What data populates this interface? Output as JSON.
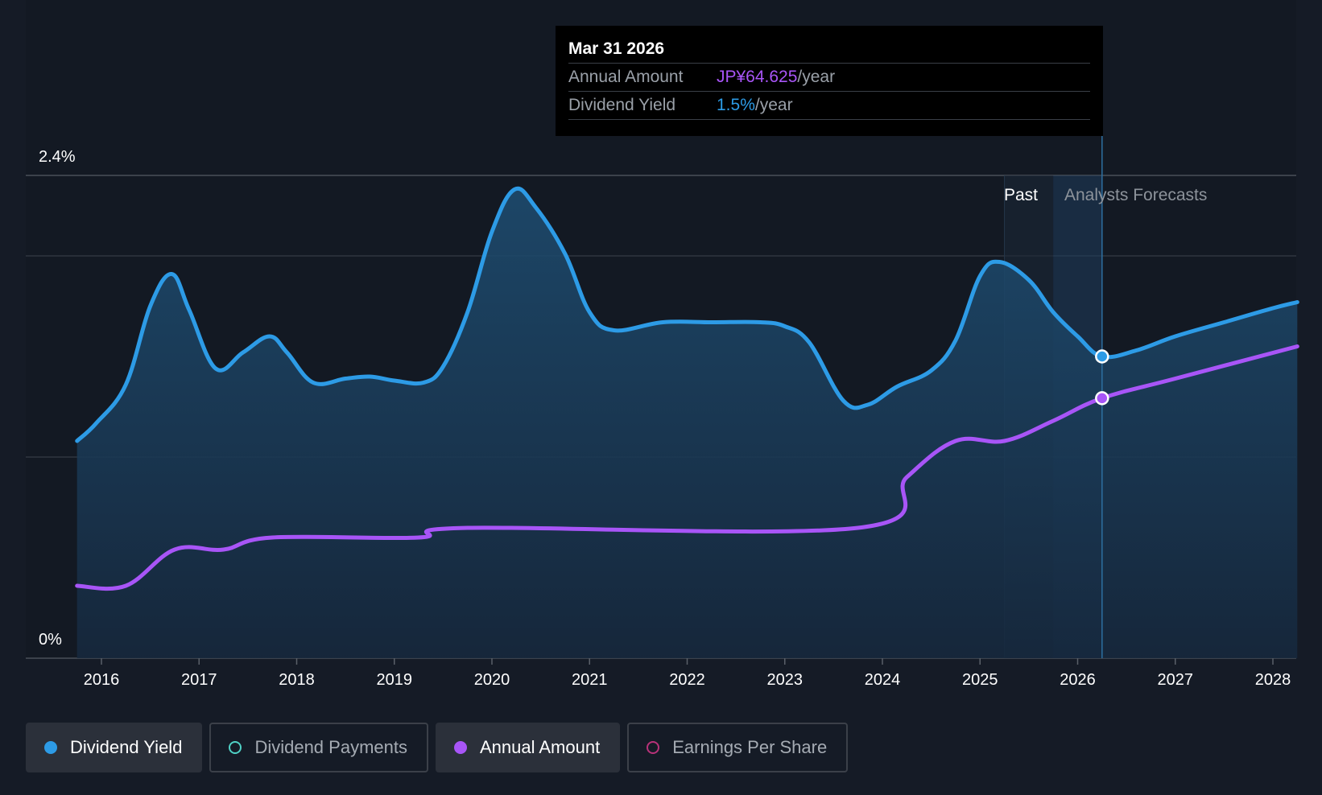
{
  "tooltip": {
    "date": "Mar 31 2026",
    "rows": [
      {
        "label": "Annual Amount",
        "value": "JP¥64.625",
        "unit": "/year"
      },
      {
        "label": "Dividend Yield",
        "value": "1.5%",
        "unit": "/year"
      }
    ]
  },
  "period_labels": {
    "past": "Past",
    "forecast": "Analysts Forecasts"
  },
  "legend": [
    {
      "label": "Dividend Yield",
      "active": true,
      "color": "#2d9be6",
      "style": "filled"
    },
    {
      "label": "Dividend Payments",
      "active": false,
      "color": "#4fd1c5",
      "style": "ring"
    },
    {
      "label": "Annual Amount",
      "active": true,
      "color": "#a855f7",
      "style": "filled"
    },
    {
      "label": "Earnings Per Share",
      "active": false,
      "color": "#b83279",
      "style": "ring"
    }
  ],
  "colors": {
    "background": "#151b26",
    "dividend_yield": "#2d9be6",
    "annual_amount": "#a855f7",
    "grid": "#3a404a"
  },
  "chart_data": {
    "type": "line",
    "title": "",
    "xlabel": "",
    "ylabel": "",
    "x_tick_labels": [
      "2016",
      "2017",
      "2018",
      "2019",
      "2020",
      "2021",
      "2022",
      "2023",
      "2024",
      "2025",
      "2026",
      "2027",
      "2028"
    ],
    "y_tick_labels": [
      "2.4%",
      "0%"
    ],
    "ylim": [
      0,
      2.4
    ],
    "xlim": [
      2015.75,
      2028.25
    ],
    "past_forecast_split": 2026.25,
    "legend_position": "bottom",
    "grid": true,
    "series": [
      {
        "name": "Dividend Yield",
        "unit": "%",
        "axis": "left",
        "filled": true,
        "points": [
          [
            2015.75,
            1.08
          ],
          [
            2015.95,
            1.17
          ],
          [
            2016.25,
            1.36
          ],
          [
            2016.5,
            1.75
          ],
          [
            2016.72,
            1.91
          ],
          [
            2016.9,
            1.73
          ],
          [
            2017.17,
            1.44
          ],
          [
            2017.45,
            1.52
          ],
          [
            2017.72,
            1.6
          ],
          [
            2017.9,
            1.52
          ],
          [
            2018.17,
            1.37
          ],
          [
            2018.5,
            1.39
          ],
          [
            2018.75,
            1.4
          ],
          [
            2019.0,
            1.38
          ],
          [
            2019.3,
            1.37
          ],
          [
            2019.5,
            1.45
          ],
          [
            2019.75,
            1.72
          ],
          [
            2020.0,
            2.12
          ],
          [
            2020.23,
            2.33
          ],
          [
            2020.45,
            2.24
          ],
          [
            2020.75,
            2.01
          ],
          [
            2021.0,
            1.72
          ],
          [
            2021.25,
            1.63
          ],
          [
            2021.75,
            1.67
          ],
          [
            2022.25,
            1.67
          ],
          [
            2022.75,
            1.67
          ],
          [
            2023.0,
            1.65
          ],
          [
            2023.25,
            1.57
          ],
          [
            2023.6,
            1.28
          ],
          [
            2023.85,
            1.26
          ],
          [
            2024.15,
            1.35
          ],
          [
            2024.5,
            1.43
          ],
          [
            2024.75,
            1.58
          ],
          [
            2025.0,
            1.9
          ],
          [
            2025.2,
            1.97
          ],
          [
            2025.5,
            1.88
          ],
          [
            2025.75,
            1.72
          ],
          [
            2026.0,
            1.6
          ],
          [
            2026.25,
            1.5
          ],
          [
            2026.6,
            1.53
          ],
          [
            2027.0,
            1.6
          ],
          [
            2027.5,
            1.67
          ],
          [
            2028.0,
            1.74
          ],
          [
            2028.25,
            1.77
          ]
        ]
      },
      {
        "name": "Annual Amount",
        "unit": "JP¥",
        "axis": "right",
        "points": [
          [
            2015.75,
            18
          ],
          [
            2016.25,
            18
          ],
          [
            2016.75,
            27
          ],
          [
            2017.25,
            27
          ],
          [
            2017.75,
            30
          ],
          [
            2019.25,
            30
          ],
          [
            2019.75,
            32.4
          ],
          [
            2023.75,
            32.4
          ],
          [
            2024.25,
            45
          ],
          [
            2024.75,
            54
          ],
          [
            2025.25,
            54
          ],
          [
            2025.75,
            59
          ],
          [
            2026.25,
            64.625
          ],
          [
            2027.0,
            69.5
          ],
          [
            2028.25,
            77.5
          ]
        ]
      }
    ],
    "highlight": {
      "x": 2026.25,
      "amount": 64.625,
      "yield": 1.5
    }
  }
}
